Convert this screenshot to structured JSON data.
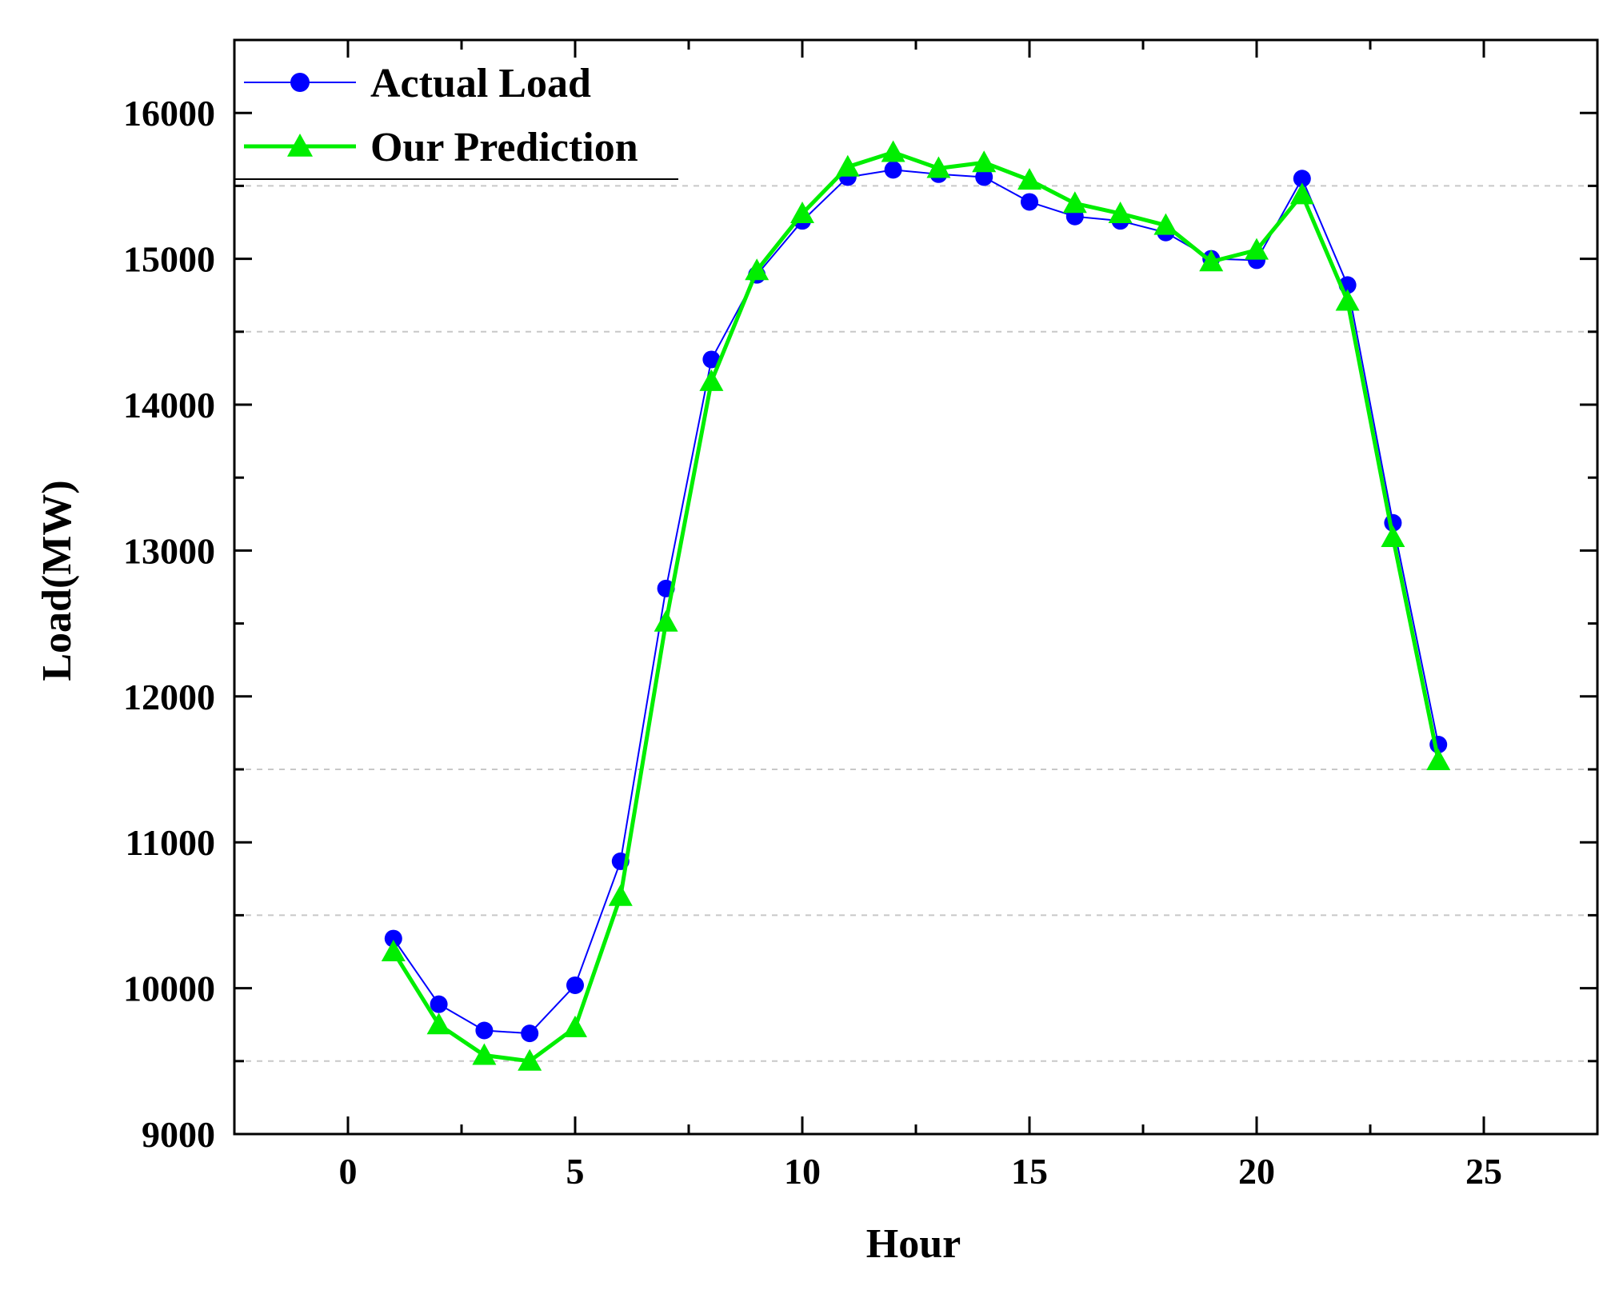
{
  "chart_data": {
    "type": "line",
    "title": "",
    "xlabel": "Hour",
    "ylabel": "Load(MW)",
    "xlim": [
      -2.5,
      27.5
    ],
    "ylim": [
      9000,
      16500
    ],
    "xticks": [
      0,
      5,
      10,
      15,
      20,
      25
    ],
    "yticks": [
      9000,
      10000,
      11000,
      12000,
      13000,
      14000,
      15000,
      16000
    ],
    "x_tick_labels": [
      "0",
      "5",
      "10",
      "15",
      "20",
      "25"
    ],
    "y_tick_labels": [
      "9000",
      "10000",
      "11000",
      "12000",
      "13000",
      "14000",
      "15000",
      "16000"
    ],
    "gridlines_y": [
      9500,
      10500,
      11500,
      14500,
      15500
    ],
    "legend_position": "top-left",
    "x": [
      1,
      2,
      3,
      4,
      5,
      6,
      7,
      8,
      9,
      10,
      11,
      12,
      13,
      14,
      15,
      16,
      17,
      18,
      19,
      20,
      21,
      22,
      23,
      24
    ],
    "series": [
      {
        "name": "Actual Load",
        "color": "#0000ff",
        "marker": "circle",
        "line_style": "thin",
        "values": [
          10340,
          9890,
          9710,
          9690,
          10020,
          10870,
          12740,
          14310,
          14890,
          15260,
          15560,
          15610,
          15580,
          15560,
          15390,
          15290,
          15260,
          15180,
          15000,
          14990,
          15550,
          14820,
          13190,
          11670
        ]
      },
      {
        "name": "Our Prediction",
        "color": "#00ee00",
        "marker": "triangle",
        "line_style": "thick",
        "values": [
          10250,
          9750,
          9540,
          9500,
          9730,
          10630,
          12510,
          14160,
          14920,
          15310,
          15630,
          15730,
          15620,
          15660,
          15540,
          15380,
          15310,
          15230,
          14980,
          15060,
          15440,
          14710,
          13090,
          11560
        ]
      }
    ]
  }
}
